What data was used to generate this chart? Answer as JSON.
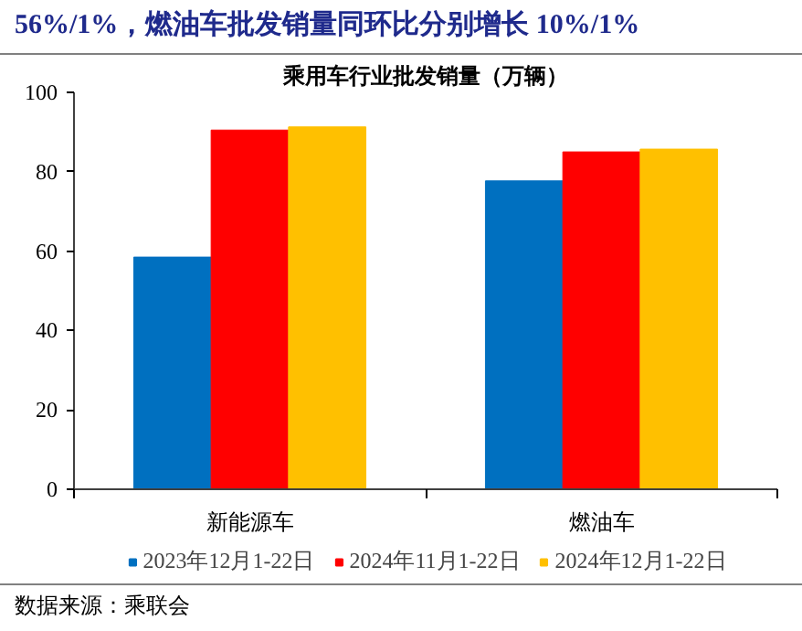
{
  "chart_data": {
    "type": "bar",
    "title": "乘用车行业批发销量（万辆）",
    "annotations": [
      "56%/1%，燃油车批发销量同环比分别增长 10%/1%",
      "数据来源：乘联会"
    ],
    "categories": [
      "新能源车",
      "燃油车"
    ],
    "series": [
      {
        "name": "2023年12月1-22日",
        "color": "#0070c0",
        "values": [
          58.5,
          77.7
        ]
      },
      {
        "name": "2024年11月1-22日",
        "color": "#ff0000",
        "values": [
          90.5,
          85.0
        ]
      },
      {
        "name": "2024年12月1-22日",
        "color": "#ffc000",
        "values": [
          91.3,
          85.7
        ]
      }
    ],
    "ylim": [
      0,
      100
    ],
    "yticks": [
      0,
      20,
      40,
      60,
      80,
      100
    ],
    "grid": false,
    "legend": "bottom"
  }
}
